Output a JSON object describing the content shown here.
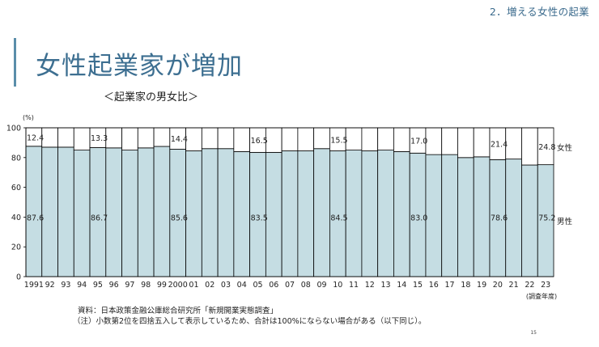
{
  "header": {
    "section_label": "2．増える女性の起業",
    "title": "女性起業家が増加",
    "subtitle": "＜起業家の男女比＞"
  },
  "notes": {
    "source": "資料：日本政策金融公庫総合研究所「新規開業実態調査」",
    "footnote": "（注）小数第2位を四捨五入して表示しているため、合計は100%にならない場合がある（以下同じ）。",
    "page": "15"
  },
  "colors": {
    "male": "#c5dde3",
    "female": "#ffffff",
    "title": "#3d6f91",
    "accent_bar": "#5a8eaa"
  },
  "chart_data": {
    "type": "bar",
    "stacked": true,
    "ylabel": "(%)",
    "xlabel": "(調査年度)",
    "ylim": [
      0,
      100
    ],
    "yticks": [
      0,
      20,
      40,
      60,
      80,
      100
    ],
    "categories": [
      "1991",
      "92",
      "93",
      "94",
      "95",
      "96",
      "97",
      "98",
      "99",
      "2000",
      "01",
      "02",
      "03",
      "04",
      "05",
      "06",
      "07",
      "08",
      "09",
      "10",
      "11",
      "12",
      "13",
      "14",
      "15",
      "16",
      "17",
      "18",
      "19",
      "20",
      "21",
      "22",
      "23"
    ],
    "series": [
      {
        "name": "男性",
        "color": "#c5dde3",
        "values": [
          87.6,
          87,
          87,
          85,
          86.7,
          86.5,
          85,
          86.5,
          87.5,
          85.6,
          84.5,
          86,
          86,
          84,
          83.5,
          83.5,
          84.5,
          84.5,
          86,
          84.5,
          85,
          84.5,
          85,
          84,
          83,
          82,
          82,
          80,
          80.5,
          78.6,
          79,
          75,
          75.2
        ]
      },
      {
        "name": "女性",
        "color": "#ffffff",
        "values": [
          12.4,
          13,
          13,
          15,
          13.3,
          13.5,
          15,
          13.5,
          12.5,
          14.4,
          15.5,
          14,
          14,
          16,
          16.5,
          16.5,
          15.5,
          15.5,
          14,
          15.5,
          15,
          15.5,
          15,
          16,
          17.0,
          18,
          18,
          20,
          19.5,
          21.4,
          21,
          25,
          24.8
        ]
      }
    ],
    "labels_male": [
      {
        "i": 0,
        "text": "87.6"
      },
      {
        "i": 4,
        "text": "86.7"
      },
      {
        "i": 9,
        "text": "85.6"
      },
      {
        "i": 14,
        "text": "83.5"
      },
      {
        "i": 19,
        "text": "84.5"
      },
      {
        "i": 24,
        "text": "83.0"
      },
      {
        "i": 29,
        "text": "78.6"
      },
      {
        "i": 32,
        "text": "75.2"
      }
    ],
    "labels_female": [
      {
        "i": 0,
        "text": "12.4"
      },
      {
        "i": 4,
        "text": "13.3"
      },
      {
        "i": 9,
        "text": "14.4"
      },
      {
        "i": 14,
        "text": "16.5"
      },
      {
        "i": 19,
        "text": "15.5"
      },
      {
        "i": 24,
        "text": "17.0"
      },
      {
        "i": 29,
        "text": "21.4"
      },
      {
        "i": 32,
        "text": "24.8"
      }
    ],
    "legend": {
      "female": "女性",
      "male": "男性",
      "placement": "right"
    }
  }
}
